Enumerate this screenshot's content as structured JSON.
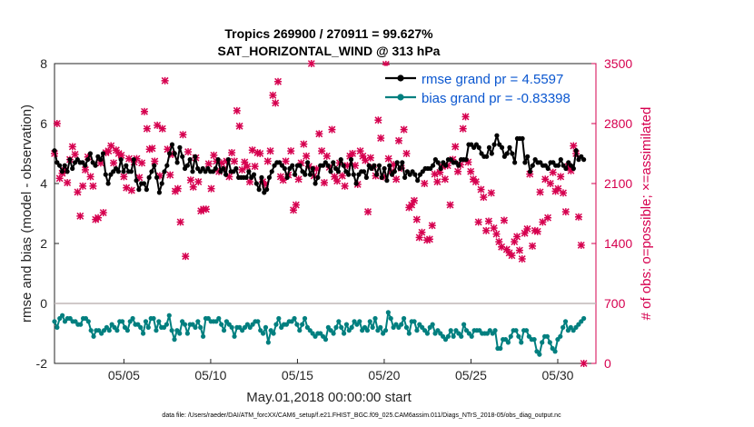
{
  "chart_data": {
    "type": "line",
    "title_line1": "Tropics 269900 / 270911 = 99.627%",
    "title_line2": "SAT_HORIZONTAL_WIND @ 313 hPa",
    "xlabel": "May.01,2018 00:00:00 start",
    "ylabel_left": "rmse and bias (model - observation)",
    "ylabel_right": "# of obs: o=possible; ×=assimilated",
    "footnote": "data file: /Users/raeder/DAI/ATM_forcXX/CAM6_setup/f.e21.FHIST_BGC.f09_025.CAM6assim.011/Diags_NTrS_2018-05/obs_diag_output.nc",
    "xlim": [
      1,
      32.2
    ],
    "xticks": [
      5,
      10,
      15,
      20,
      25,
      30
    ],
    "xtick_labels": [
      "05/05",
      "05/10",
      "05/15",
      "05/20",
      "05/25",
      "05/30"
    ],
    "ylim_left": [
      -2,
      8
    ],
    "yticks_left": [
      "-2",
      "0",
      "2",
      "4",
      "6",
      "8"
    ],
    "ylim_right": [
      0,
      3500
    ],
    "yticks_right": [
      "0",
      "700",
      "1400",
      "2100",
      "2800",
      "3500"
    ],
    "zero_line": 0,
    "legend_position": "top-right",
    "series": [
      {
        "name": "rmse grand pr = 4.5597",
        "color": "#000000",
        "values": [
          5.1,
          4.7,
          4.6,
          4.4,
          4.6,
          4.4,
          4.8,
          4.5,
          4.7,
          4.8,
          4.7,
          4.7,
          4.6,
          4.8,
          5.0,
          4.7,
          4.6,
          4.9,
          4.8,
          5.0,
          4.3,
          4.0,
          4.3,
          4.4,
          4.5,
          4.4,
          4.8,
          4.4,
          4.6,
          4.4,
          4.4,
          4.8,
          4.1,
          3.8,
          4.0,
          4.0,
          3.8,
          4.2,
          4.4,
          4.6,
          4.2,
          3.7,
          4.0,
          4.4,
          4.6,
          5.0,
          5.3,
          5.0,
          4.7,
          5.2,
          4.9,
          4.5,
          4.6,
          4.8,
          4.4,
          4.9,
          4.5,
          4.4,
          4.5,
          4.4,
          4.5,
          4.4,
          4.4,
          4.5,
          4.8,
          4.4,
          4.5,
          4.3,
          4.8,
          4.4,
          4.4,
          4.5,
          4.2,
          4.2,
          4.2,
          4.2,
          4.4,
          4.2,
          4.3,
          4.0,
          3.8,
          4.2,
          3.7,
          3.8,
          4.2,
          4.4,
          4.6,
          4.7,
          4.7,
          4.6,
          4.5,
          4.2,
          4.5,
          4.6,
          4.3,
          4.6,
          4.6,
          4.4,
          4.3,
          4.7,
          4.3,
          4.5,
          4.0,
          4.2,
          4.6,
          4.6,
          4.7,
          4.6,
          4.4,
          4.7,
          4.5,
          4.4,
          4.8,
          4.6,
          4.4,
          4.3,
          4.8,
          4.3,
          4.0,
          4.3,
          4.4,
          4.4,
          4.2,
          4.6,
          4.5,
          4.6,
          4.3,
          4.6,
          4.2,
          4.5,
          4.1,
          4.6,
          4.3,
          4.4,
          4.7,
          4.5,
          4.7,
          4.2,
          4.4,
          4.3,
          4.4,
          4.3,
          4.1,
          4.3,
          4.4,
          4.5,
          4.5,
          4.5,
          4.6,
          4.8,
          4.7,
          4.5,
          4.7,
          4.6,
          4.8,
          4.8,
          4.7,
          4.7,
          4.6,
          4.8,
          4.8,
          4.8,
          5.3,
          5.3,
          5.2,
          5.3,
          5.2,
          5.0,
          4.9,
          4.9,
          5.2,
          5.0,
          5.3,
          5.6,
          5.3,
          5.2,
          4.9,
          5.0,
          5.2,
          5.0,
          4.7,
          5.5,
          5.5,
          5.5,
          4.7,
          4.9,
          4.4,
          4.6,
          4.8,
          4.7,
          4.7,
          4.6,
          4.6,
          4.5,
          4.7,
          4.7,
          4.6,
          4.6,
          4.8,
          4.6,
          4.5,
          4.7,
          4.6,
          4.5,
          5.1,
          4.8,
          4.9,
          4.8
        ]
      },
      {
        "name": "bias grand pr = -0.83398",
        "color": "#007f7f",
        "values": [
          -0.6,
          -0.8,
          -0.5,
          -0.4,
          -0.6,
          -0.5,
          -0.5,
          -0.6,
          -0.6,
          -0.7,
          -0.7,
          -0.5,
          -0.5,
          -0.6,
          -0.9,
          -1.1,
          -0.9,
          -0.9,
          -1.0,
          -0.9,
          -0.8,
          -0.9,
          -0.7,
          -0.8,
          -0.9,
          -0.6,
          -0.6,
          -0.8,
          -0.9,
          -0.6,
          -0.5,
          -0.7,
          -0.7,
          -0.8,
          -1.0,
          -0.6,
          -0.8,
          -0.5,
          -0.5,
          -0.9,
          -0.6,
          -0.8,
          -0.8,
          -0.7,
          -0.4,
          -0.9,
          -1.2,
          -0.9,
          -1.0,
          -0.6,
          -0.7,
          -1.0,
          -0.7,
          -0.7,
          -0.8,
          -0.6,
          -0.8,
          -1.1,
          -0.5,
          -0.5,
          -0.6,
          -0.6,
          -0.6,
          -0.5,
          -0.7,
          -0.9,
          -0.6,
          -0.7,
          -0.8,
          -1.1,
          -0.8,
          -0.8,
          -0.9,
          -0.8,
          -0.7,
          -0.8,
          -0.7,
          -0.6,
          -0.6,
          -0.9,
          -1.0,
          -0.8,
          -1.3,
          -0.9,
          -1.0,
          -0.7,
          -0.5,
          -0.8,
          -0.7,
          -0.7,
          -0.6,
          -0.6,
          -0.5,
          -0.7,
          -0.9,
          -0.7,
          -0.5,
          -0.8,
          -0.9,
          -1.0,
          -1.1,
          -1.0,
          -1.0,
          -1.1,
          -1.2,
          -0.8,
          -0.9,
          -1.0,
          -0.8,
          -0.6,
          -0.8,
          -1.0,
          -0.7,
          -0.9,
          -0.8,
          -0.6,
          -0.7,
          -0.6,
          -0.9,
          -0.8,
          -0.9,
          -0.6,
          -0.8,
          -0.5,
          -0.9,
          -0.8,
          -1.0,
          -0.9,
          -0.3,
          -0.5,
          -0.8,
          -0.7,
          -0.8,
          -0.7,
          -0.5,
          -0.8,
          -1.0,
          -0.6,
          -0.6,
          -0.9,
          -0.7,
          -0.8,
          -0.9,
          -1.0,
          -0.8,
          -0.7,
          -1.0,
          -0.9,
          -1.0,
          -1.1,
          -1.2,
          -1.1,
          -0.9,
          -1.1,
          -0.9,
          -1.0,
          -1.1,
          -0.7,
          -0.9,
          -1.0,
          -1.1,
          -0.9,
          -0.9,
          -0.9,
          -1.0,
          -1.0,
          -1.0,
          -0.9,
          -1.0,
          -0.9,
          -1.5,
          -1.5,
          -1.2,
          -1.2,
          -1.3,
          -1.1,
          -0.9,
          -0.9,
          -1.1,
          -1.3,
          -0.9,
          -0.9,
          -1.1,
          -1.2,
          -1.2,
          -1.6,
          -1.7,
          -1.3,
          -1.1,
          -1.1,
          -1.3,
          -1.5,
          -1.6,
          -1.2,
          -1.1,
          -0.8,
          -0.6,
          -0.9,
          -0.8,
          -0.9,
          -0.8,
          -0.7,
          -0.6,
          -0.5
        ]
      }
    ],
    "obs_assimilated": {
      "name": "# of obs assimilated",
      "color": "#d6004f",
      "values": [
        2450,
        2800,
        2160,
        2220,
        2250,
        2110,
        2380,
        2530,
        2440,
        2000,
        1720,
        2070,
        2260,
        2410,
        2180,
        2070,
        1680,
        1700,
        2340,
        1760,
        2460,
        2480,
        2540,
        2340,
        2490,
        2450,
        2430,
        2180,
        2050,
        2390,
        2020,
        2350,
        2390,
        2170,
        2340,
        2940,
        2740,
        2500,
        2510,
        2360,
        2780,
        2190,
        2740,
        3300,
        2500,
        2200,
        2440,
        2010,
        2040,
        1650,
        2670,
        1250,
        2470,
        2140,
        2060,
        2400,
        2120,
        1780,
        1800,
        1800,
        2330,
        2040,
        2430,
        2360,
        2240,
        2340,
        2270,
        2360,
        2180,
        2460,
        2360,
        2950,
        2770,
        2260,
        2350,
        2300,
        2120,
        2490,
        2300,
        2460,
        2450,
        2120,
        2090,
        2360,
        2480,
        3130,
        3040,
        3290,
        2180,
        2140,
        2360,
        2200,
        2480,
        1790,
        1850,
        2150,
        2340,
        2560,
        2420,
        2300,
        3500,
        2190,
        2270,
        2680,
        2480,
        2110,
        2420,
        2290,
        2730,
        2180,
        2130,
        2340,
        2190,
        2070,
        2310,
        2420,
        2450,
        2310,
        2090,
        2480,
        2420,
        2370,
        1770,
        2400,
        2290,
        2190,
        2840,
        2630,
        2180,
        3490,
        2390,
        2240,
        2320,
        2150,
        2600,
        2280,
        2730,
        2450,
        1820,
        1850,
        1900,
        1680,
        1470,
        1530,
        2100,
        1440,
        1450,
        1610,
        2210,
        2120,
        2230,
        2300,
        2150,
        2310,
        1850,
        2380,
        2530,
        2240,
        2320,
        2740,
        2880,
        2350,
        2240,
        2150,
        2120,
        1650,
        2030,
        1940,
        1550,
        1660,
        1990,
        1580,
        1510,
        1420,
        1360,
        1670,
        1330,
        1290,
        1260,
        1420,
        1480,
        1320,
        1220,
        1520,
        1570,
        2210,
        1370,
        1550,
        1540,
        2000,
        1650,
        2150,
        1700,
        2100,
        2230,
        2010,
        2040,
        2180,
        1990,
        1770,
        2300,
        2250,
        2540,
        2450,
        1710,
        1380,
        0
      ]
    }
  }
}
